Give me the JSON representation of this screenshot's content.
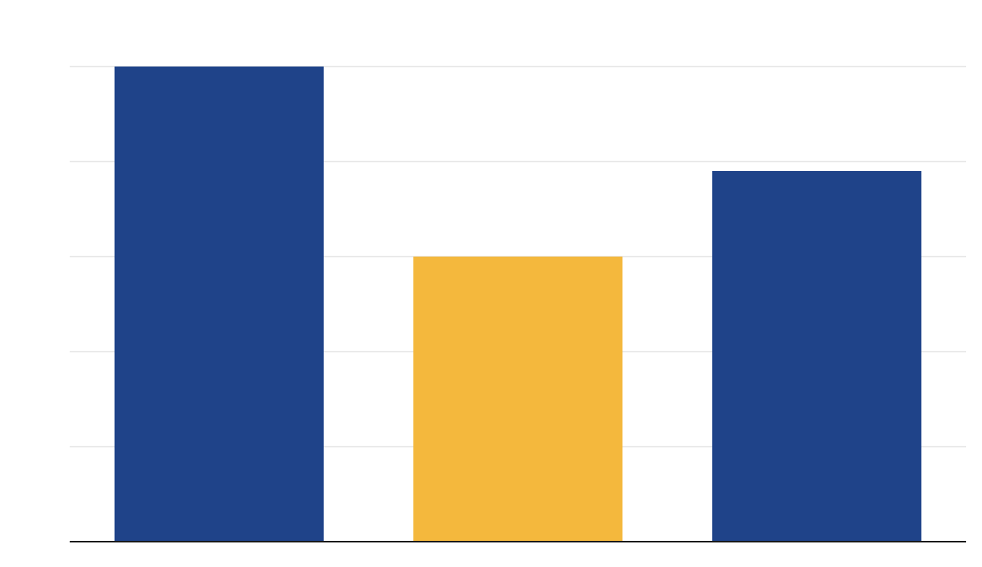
{
  "chart_data": {
    "type": "bar",
    "title": "",
    "xlabel": "",
    "ylabel": "",
    "categories": [
      "",
      "",
      ""
    ],
    "values": [
      5,
      3,
      3.9
    ],
    "ylim": [
      0,
      5
    ],
    "y_ticks": [
      0,
      1,
      2,
      3,
      4,
      5
    ],
    "grid": true,
    "legend": "none",
    "colors": {
      "bars": [
        "#1f4389",
        "#f4b83d",
        "#1f4389"
      ],
      "grid": "#e3e3e3",
      "axis": "#1a1a1a",
      "background": "#ffffff"
    }
  }
}
